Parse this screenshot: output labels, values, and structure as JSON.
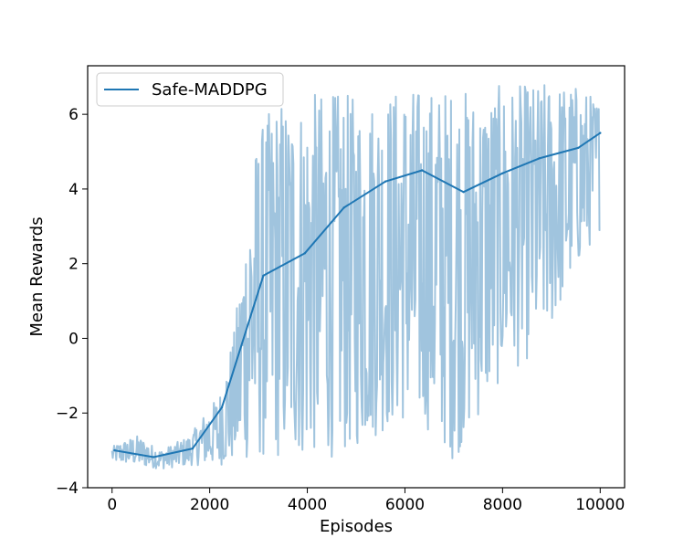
{
  "chart_data": {
    "type": "line",
    "title": "",
    "xlabel": "Episodes",
    "ylabel": "Mean Rewards",
    "xlim": [
      -500,
      10500
    ],
    "ylim": [
      -4,
      7.3
    ],
    "xticks": [
      0,
      2000,
      4000,
      6000,
      8000,
      10000
    ],
    "xtick_labels": [
      "0",
      "2000",
      "4000",
      "6000",
      "8000",
      "10000"
    ],
    "yticks": [
      -4,
      -2,
      0,
      2,
      4,
      6
    ],
    "ytick_labels": [
      "−4",
      "−2",
      "0",
      "2",
      "4",
      "6"
    ],
    "grid": false,
    "legend_position": "top-left",
    "series": [
      {
        "name": "Safe-MADDPG",
        "color": "#1f77b4",
        "x": [
          50,
          850,
          1650,
          2250,
          3100,
          3950,
          4750,
          5600,
          6350,
          7200,
          8000,
          8750,
          9550,
          10000
        ],
        "values": [
          -3.0,
          -3.18,
          -2.95,
          -1.85,
          1.68,
          2.28,
          3.5,
          4.2,
          4.5,
          3.92,
          4.42,
          4.82,
          5.1,
          5.5
        ]
      }
    ],
    "raw_series": {
      "color": "#a0c4de",
      "x_start": 0,
      "x_end": 10000,
      "envelope": {
        "x": [
          0,
          500,
          1000,
          1600,
          1900,
          2200,
          2500,
          2900,
          3100,
          3400,
          3800,
          4200,
          4600,
          5000,
          5500,
          6000,
          6500,
          7000,
          7500,
          8000,
          8500,
          9000,
          9500,
          10000
        ],
        "low": [
          -3.3,
          -3.4,
          -3.5,
          -3.4,
          -3.4,
          -3.4,
          -3.35,
          -3.3,
          -3.3,
          -3.3,
          -3.3,
          -3.2,
          -3.2,
          -3.0,
          -2.6,
          -2.3,
          -2.5,
          -3.3,
          -2.2,
          -1.1,
          -0.6,
          0.2,
          1.8,
          2.9
        ],
        "high": [
          -2.9,
          -2.6,
          -3.0,
          -2.6,
          -2.0,
          -1.5,
          0.2,
          5.0,
          5.8,
          6.5,
          6.4,
          6.6,
          6.6,
          6.5,
          6.6,
          6.8,
          6.7,
          6.8,
          6.6,
          6.8,
          6.8,
          6.9,
          6.8,
          6.4
        ]
      }
    }
  }
}
